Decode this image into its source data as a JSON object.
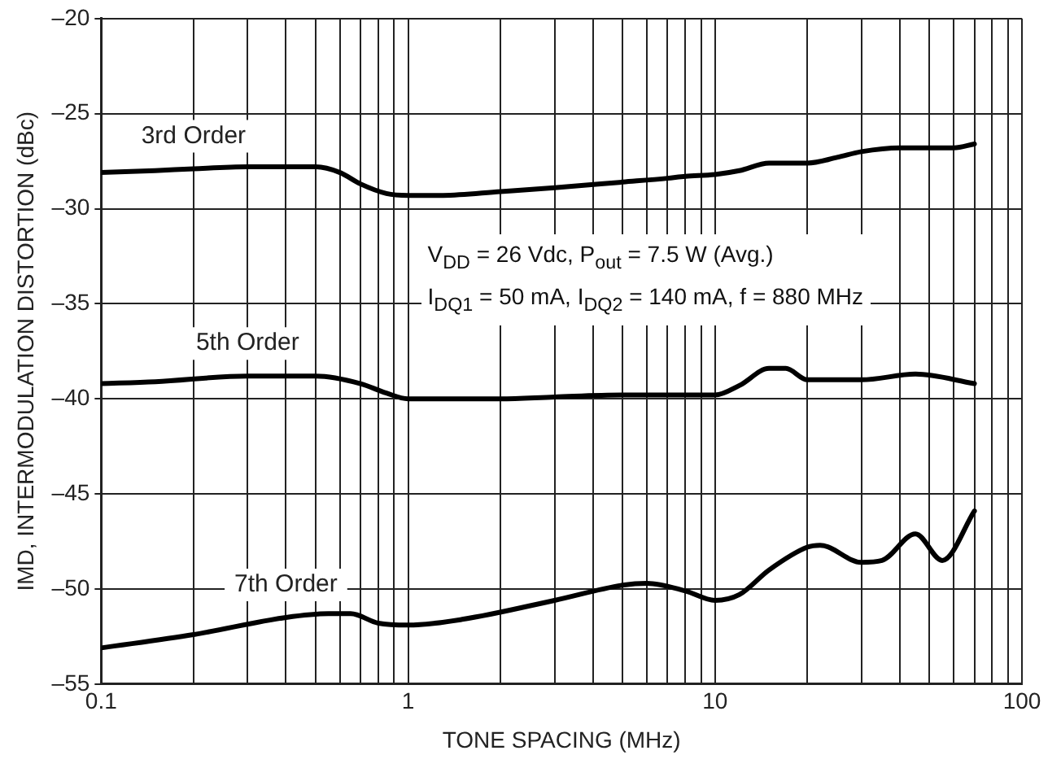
{
  "chart_data": {
    "type": "line",
    "xlabel": "TONE SPACING (MHz)",
    "ylabel": "IMD, INTERMODULATION DISTORTION (dBc)",
    "log": "x",
    "grid": true,
    "legend": false,
    "marker": "none",
    "line_style": "solid",
    "xlim": [
      0.1,
      100
    ],
    "xticks": [
      0.1,
      {
        "value": 0.2,
        "label": null
      },
      {
        "value": 0.3,
        "label": null
      },
      {
        "value": 0.4,
        "label": null
      },
      {
        "value": 0.5,
        "label": null
      },
      {
        "value": 0.6,
        "label": null
      },
      {
        "value": 0.7,
        "label": null
      },
      {
        "value": 0.8,
        "label": null
      },
      {
        "value": 0.9,
        "label": null
      },
      1,
      {
        "value": 2,
        "label": null
      },
      {
        "value": 3,
        "label": null
      },
      {
        "value": 4,
        "label": null
      },
      {
        "value": 5,
        "label": null
      },
      {
        "value": 6,
        "label": null
      },
      {
        "value": 7,
        "label": null
      },
      {
        "value": 8,
        "label": null
      },
      {
        "value": 9,
        "label": null
      },
      10,
      {
        "value": 20,
        "label": null
      },
      {
        "value": 30,
        "label": null
      },
      {
        "value": 40,
        "label": null
      },
      {
        "value": 50,
        "label": null
      },
      {
        "value": 60,
        "label": null
      },
      {
        "value": 70,
        "label": null
      },
      {
        "value": 80,
        "label": null
      },
      {
        "value": 90,
        "label": null
      },
      100
    ],
    "ylim": [
      -55,
      -20
    ],
    "yticks": [
      {
        "value": -55,
        "label": "–55"
      },
      {
        "value": -50,
        "label": "–50"
      },
      {
        "value": -45,
        "label": "–45"
      },
      {
        "value": -40,
        "label": "–40"
      },
      {
        "value": -35,
        "label": "–35"
      },
      {
        "value": -30,
        "label": "–30"
      },
      {
        "value": -25,
        "label": "–25"
      },
      {
        "value": -20,
        "label": "–20"
      }
    ],
    "annotations": [
      "V$_{DD}$ = 26 Vdc, P$_{out}$ = 7.5 W (Avg.)",
      "I$_{DQ1}$ = 50 mA, I$_{DQ2}$ = 140 mA, f = 880 MHz"
    ],
    "series": [
      {
        "name": "3rd Order",
        "color": "#000000",
        "x": [
          0.1,
          0.15,
          0.2,
          0.3,
          0.5,
          0.6,
          0.7,
          0.85,
          1,
          1.3,
          2,
          3,
          5,
          7,
          8,
          10,
          12,
          15,
          20,
          25,
          30,
          40,
          60,
          70
        ],
        "values": [
          -28.1,
          -28.0,
          -27.9,
          -27.8,
          -27.8,
          -28.1,
          -28.7,
          -29.2,
          -29.3,
          -29.3,
          -29.1,
          -28.9,
          -28.6,
          -28.4,
          -28.3,
          -28.2,
          -28.0,
          -27.6,
          -27.6,
          -27.3,
          -27.0,
          -26.8,
          -26.8,
          -26.6
        ]
      },
      {
        "name": "5th Order",
        "color": "#000000",
        "x": [
          0.1,
          0.15,
          0.3,
          0.5,
          0.7,
          0.85,
          1,
          2,
          3,
          5,
          8,
          10,
          12,
          15,
          17,
          20,
          30,
          45,
          70
        ],
        "values": [
          -39.2,
          -39.1,
          -38.8,
          -38.8,
          -39.2,
          -39.7,
          -40.0,
          -40.0,
          -39.9,
          -39.8,
          -39.8,
          -39.8,
          -39.3,
          -38.4,
          -38.4,
          -39.0,
          -39.0,
          -38.7,
          -39.2
        ]
      },
      {
        "name": "7th Order",
        "color": "#000000",
        "x": [
          0.1,
          0.2,
          0.4,
          0.55,
          0.65,
          0.8,
          1,
          1.5,
          3,
          5,
          6,
          8,
          10,
          12,
          15,
          20,
          22,
          30,
          35,
          45,
          55,
          70
        ],
        "values": [
          -53.1,
          -52.4,
          -51.5,
          -51.3,
          -51.3,
          -51.8,
          -51.9,
          -51.6,
          -50.6,
          -49.8,
          -49.7,
          -50.1,
          -50.6,
          -50.3,
          -49.0,
          -47.8,
          -47.7,
          -48.6,
          -48.5,
          -47.1,
          -48.5,
          -45.9
        ]
      }
    ]
  }
}
